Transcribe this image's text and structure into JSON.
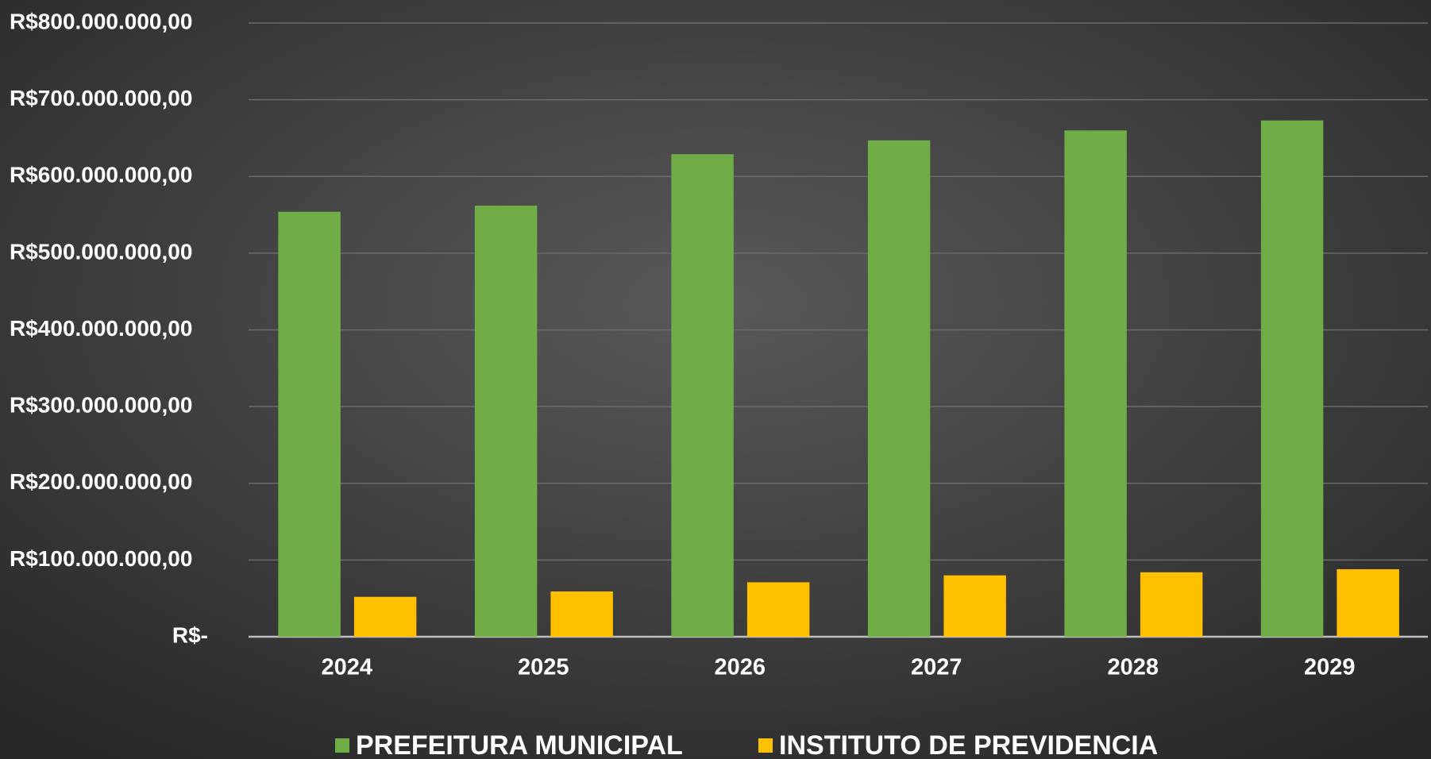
{
  "chart_data": {
    "type": "bar",
    "categories": [
      "2024",
      "2025",
      "2026",
      "2027",
      "2028",
      "2029"
    ],
    "series": [
      {
        "name": "PREFEITURA MUNICIPAL",
        "color": "#70ad47",
        "values": [
          554000000,
          562000000,
          629000000,
          647000000,
          660000000,
          673000000
        ]
      },
      {
        "name": "INSTITUTO DE PREVIDENCIA",
        "color": "#ffc000",
        "values": [
          52000000,
          59000000,
          71000000,
          80000000,
          84000000,
          88000000
        ]
      }
    ],
    "ylim": [
      0,
      800000000
    ],
    "yticks": [
      {
        "value": 0,
        "label": "R$-"
      },
      {
        "value": 100000000,
        "label": "R$100.000.000,00"
      },
      {
        "value": 200000000,
        "label": "R$200.000.000,00"
      },
      {
        "value": 300000000,
        "label": "R$300.000.000,00"
      },
      {
        "value": 400000000,
        "label": "R$400.000.000,00"
      },
      {
        "value": 500000000,
        "label": "R$500.000.000,00"
      },
      {
        "value": 600000000,
        "label": "R$600.000.000,00"
      },
      {
        "value": 700000000,
        "label": "R$700.000.000,00"
      },
      {
        "value": 800000000,
        "label": "R$800.000.000,00"
      }
    ],
    "grid": true,
    "legend": "bottom"
  }
}
